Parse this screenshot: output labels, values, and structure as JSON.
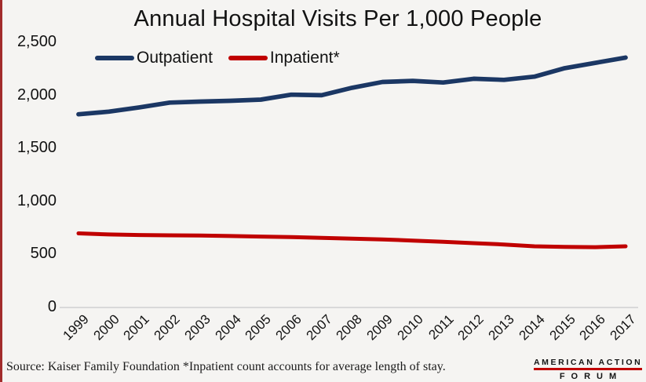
{
  "page": {
    "title": "Annual Hospital Visits Per 1,000 People",
    "source_note": "Source: Kaiser Family Foundation *Inpatient count accounts for average length of stay.",
    "logo": {
      "line1": "AMERICAN ACTION",
      "line2": "FORUM"
    },
    "colors": {
      "background": "#f5f4f2",
      "left_bar": "#a22c2c",
      "outpatient": "#1b3764",
      "inpatient": "#c00000",
      "axis_line": "#d9d9d9",
      "logo_rule": "#c00000",
      "text": "#121212"
    }
  },
  "chart_data": {
    "type": "line",
    "title": "Annual Hospital Visits Per 1,000 People",
    "x": [
      "1999",
      "2000",
      "2001",
      "2002",
      "2003",
      "2004",
      "2005",
      "2006",
      "2007",
      "2008",
      "2009",
      "2010",
      "2011",
      "2012",
      "2013",
      "2014",
      "2015",
      "2016",
      "2017"
    ],
    "series": [
      {
        "name": "Outpatient",
        "color": "#1b3764",
        "values": [
          1815,
          1840,
          1880,
          1925,
          1935,
          1942,
          1953,
          2000,
          1995,
          2065,
          2120,
          2130,
          2115,
          2150,
          2140,
          2170,
          2250,
          2300,
          2350
        ]
      },
      {
        "name": "Inpatient*",
        "color": "#c00000",
        "values": [
          690,
          680,
          675,
          672,
          670,
          665,
          660,
          655,
          648,
          640,
          633,
          622,
          610,
          598,
          585,
          568,
          562,
          560,
          568
        ]
      }
    ],
    "ylim": [
      0,
      2500
    ],
    "y_ticks": [
      0,
      500,
      1000,
      1500,
      2000,
      2500
    ],
    "y_tick_labels": [
      "0",
      "500",
      "1,000",
      "1,500",
      "2,000",
      "2,500"
    ],
    "xlabel": "",
    "ylabel": "",
    "grid": false,
    "legend_position": "top-left"
  }
}
